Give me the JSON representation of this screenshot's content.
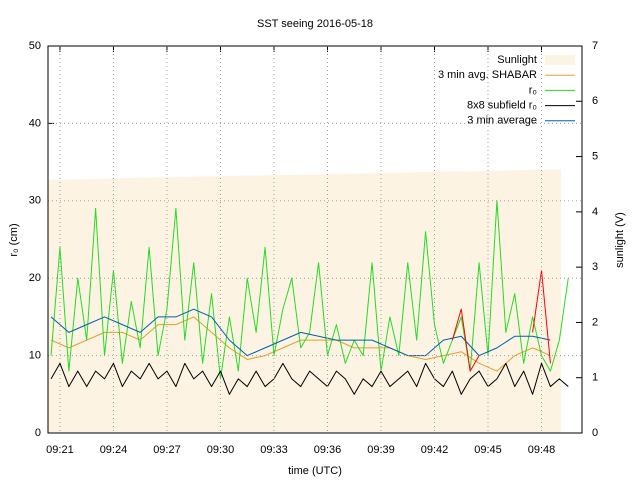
{
  "chart_data": {
    "type": "line",
    "title": "SST seeing 2016-05-18",
    "xlabel": "time (UTC)",
    "ylabel": "r₀ (cm)",
    "y2label": "sunlight (V)",
    "xlim": [
      560.33,
      590.27
    ],
    "ylim": [
      0,
      50
    ],
    "y2lim": [
      0,
      7
    ],
    "xticks": [
      {
        "value": 561,
        "label": "09:21"
      },
      {
        "value": 564,
        "label": "09:24"
      },
      {
        "value": 567,
        "label": "09:27"
      },
      {
        "value": 570,
        "label": "09:30"
      },
      {
        "value": 573,
        "label": "09:33"
      },
      {
        "value": 576,
        "label": "09:36"
      },
      {
        "value": 579,
        "label": "09:39"
      },
      {
        "value": 582,
        "label": "09:42"
      },
      {
        "value": 585,
        "label": "09:45"
      },
      {
        "value": 588,
        "label": "09:48"
      }
    ],
    "yticks": [
      0,
      10,
      20,
      30,
      40,
      50
    ],
    "y2ticks": [
      0,
      1,
      2,
      3,
      4,
      5,
      6,
      7
    ],
    "grid": true,
    "legend": "top right",
    "series": [
      {
        "name": "Sunlight",
        "color": "#fdf3e3",
        "style": "area",
        "axis": "y2",
        "x": [
          560.33,
          589.1
        ],
        "values": [
          4.58,
          4.77
        ]
      },
      {
        "name": "3 min avg. SHABAR",
        "color": "#e0a030",
        "x": [
          560.5,
          561.5,
          562.5,
          563.5,
          564.5,
          565.5,
          566.5,
          567.5,
          568.5,
          569.5,
          570.5,
          571.5,
          572.5,
          573.5,
          574.5,
          575.5,
          576.5,
          577.5,
          578.5,
          579.5,
          580.5,
          581.5,
          582.5,
          583.5,
          584.5,
          585.5,
          586.5,
          587.5,
          588.5
        ],
        "values": [
          12,
          11,
          12,
          13,
          13,
          12,
          14,
          14,
          15,
          13,
          11,
          9.5,
          10,
          11,
          12,
          12,
          12,
          11,
          11,
          11,
          10,
          9.5,
          10,
          10.5,
          9,
          8,
          10,
          11,
          10
        ]
      },
      {
        "name": "r₀",
        "color": "#22dd22",
        "x": [
          560.5,
          561,
          561.5,
          562,
          562.5,
          563,
          563.5,
          564,
          564.5,
          565,
          565.5,
          566,
          566.5,
          567,
          567.5,
          568,
          568.5,
          569,
          569.5,
          570,
          570.5,
          571,
          571.5,
          572,
          572.5,
          573,
          573.5,
          574,
          574.5,
          575,
          575.5,
          576,
          576.5,
          577,
          577.5,
          578,
          578.5,
          579,
          579.5,
          580,
          580.5,
          581,
          581.5,
          582,
          582.5,
          583,
          583.5,
          584,
          584.5,
          585,
          585.5,
          586,
          586.5,
          587,
          587.5,
          588,
          588.5,
          589,
          589.5
        ],
        "values": [
          10,
          24,
          8,
          20,
          12,
          29,
          10,
          21,
          9,
          17,
          11,
          24,
          10,
          16,
          29,
          12,
          22,
          9,
          18,
          7,
          15,
          8,
          20,
          13,
          24,
          10,
          16,
          20,
          11,
          13,
          22,
          10,
          14,
          9,
          12,
          10,
          22,
          8,
          15,
          10,
          22,
          12,
          26,
          14,
          9,
          12,
          15,
          8,
          22,
          10,
          30,
          13,
          18,
          9,
          15,
          10,
          8,
          12,
          20
        ]
      },
      {
        "name": "8x8 subfield r₀",
        "color": "#000000",
        "x": [
          560.5,
          561,
          561.5,
          562,
          562.5,
          563,
          563.5,
          564,
          564.5,
          565,
          565.5,
          566,
          566.5,
          567,
          567.5,
          568,
          568.5,
          569,
          569.5,
          570,
          570.5,
          571,
          571.5,
          572,
          572.5,
          573,
          573.5,
          574,
          574.5,
          575,
          575.5,
          576,
          576.5,
          577,
          577.5,
          578,
          578.5,
          579,
          579.5,
          580,
          580.5,
          581,
          581.5,
          582,
          582.5,
          583,
          583.5,
          584,
          584.5,
          585,
          585.5,
          586,
          586.5,
          587,
          587.5,
          588,
          588.5,
          589,
          589.5
        ],
        "values": [
          7,
          9,
          6,
          8,
          6,
          8,
          7,
          9,
          6,
          8,
          7,
          9,
          7,
          8,
          6,
          9,
          7,
          8,
          6,
          8,
          5,
          7,
          6,
          8,
          6,
          7,
          9,
          7,
          6,
          8,
          7,
          6,
          8,
          7,
          5,
          7,
          6,
          8,
          6,
          7,
          8,
          6,
          9,
          7,
          6,
          8,
          5,
          7,
          8,
          6,
          7,
          9,
          6,
          8,
          5,
          9,
          6,
          7,
          6
        ]
      },
      {
        "name": "3 min average",
        "color": "#0060ad",
        "x": [
          560.5,
          561.5,
          562.5,
          563.5,
          564.5,
          565.5,
          566.5,
          567.5,
          568.5,
          569.5,
          570.5,
          571.5,
          572.5,
          573.5,
          574.5,
          575.5,
          576.5,
          577.5,
          578.5,
          579.5,
          580.5,
          581.5,
          582.5,
          583.5,
          584.5,
          585.5,
          586.5,
          587.5,
          588.5
        ],
        "values": [
          15,
          13,
          14,
          15,
          14,
          13,
          15,
          15,
          16,
          15,
          12,
          10,
          11,
          12,
          13,
          12.5,
          12,
          12,
          12,
          11,
          10,
          10,
          12,
          12.5,
          10,
          11,
          12.5,
          12.5,
          12
        ]
      },
      {
        "color": "#ff0000",
        "x": [
          583,
          583.5,
          584,
          584.5,
          585,
          585.5,
          586,
          586.5,
          587,
          587.5,
          588,
          588.5
        ],
        "values": [
          12,
          16,
          8,
          10,
          null,
          null,
          null,
          null,
          null,
          13,
          21,
          9
        ]
      }
    ]
  }
}
